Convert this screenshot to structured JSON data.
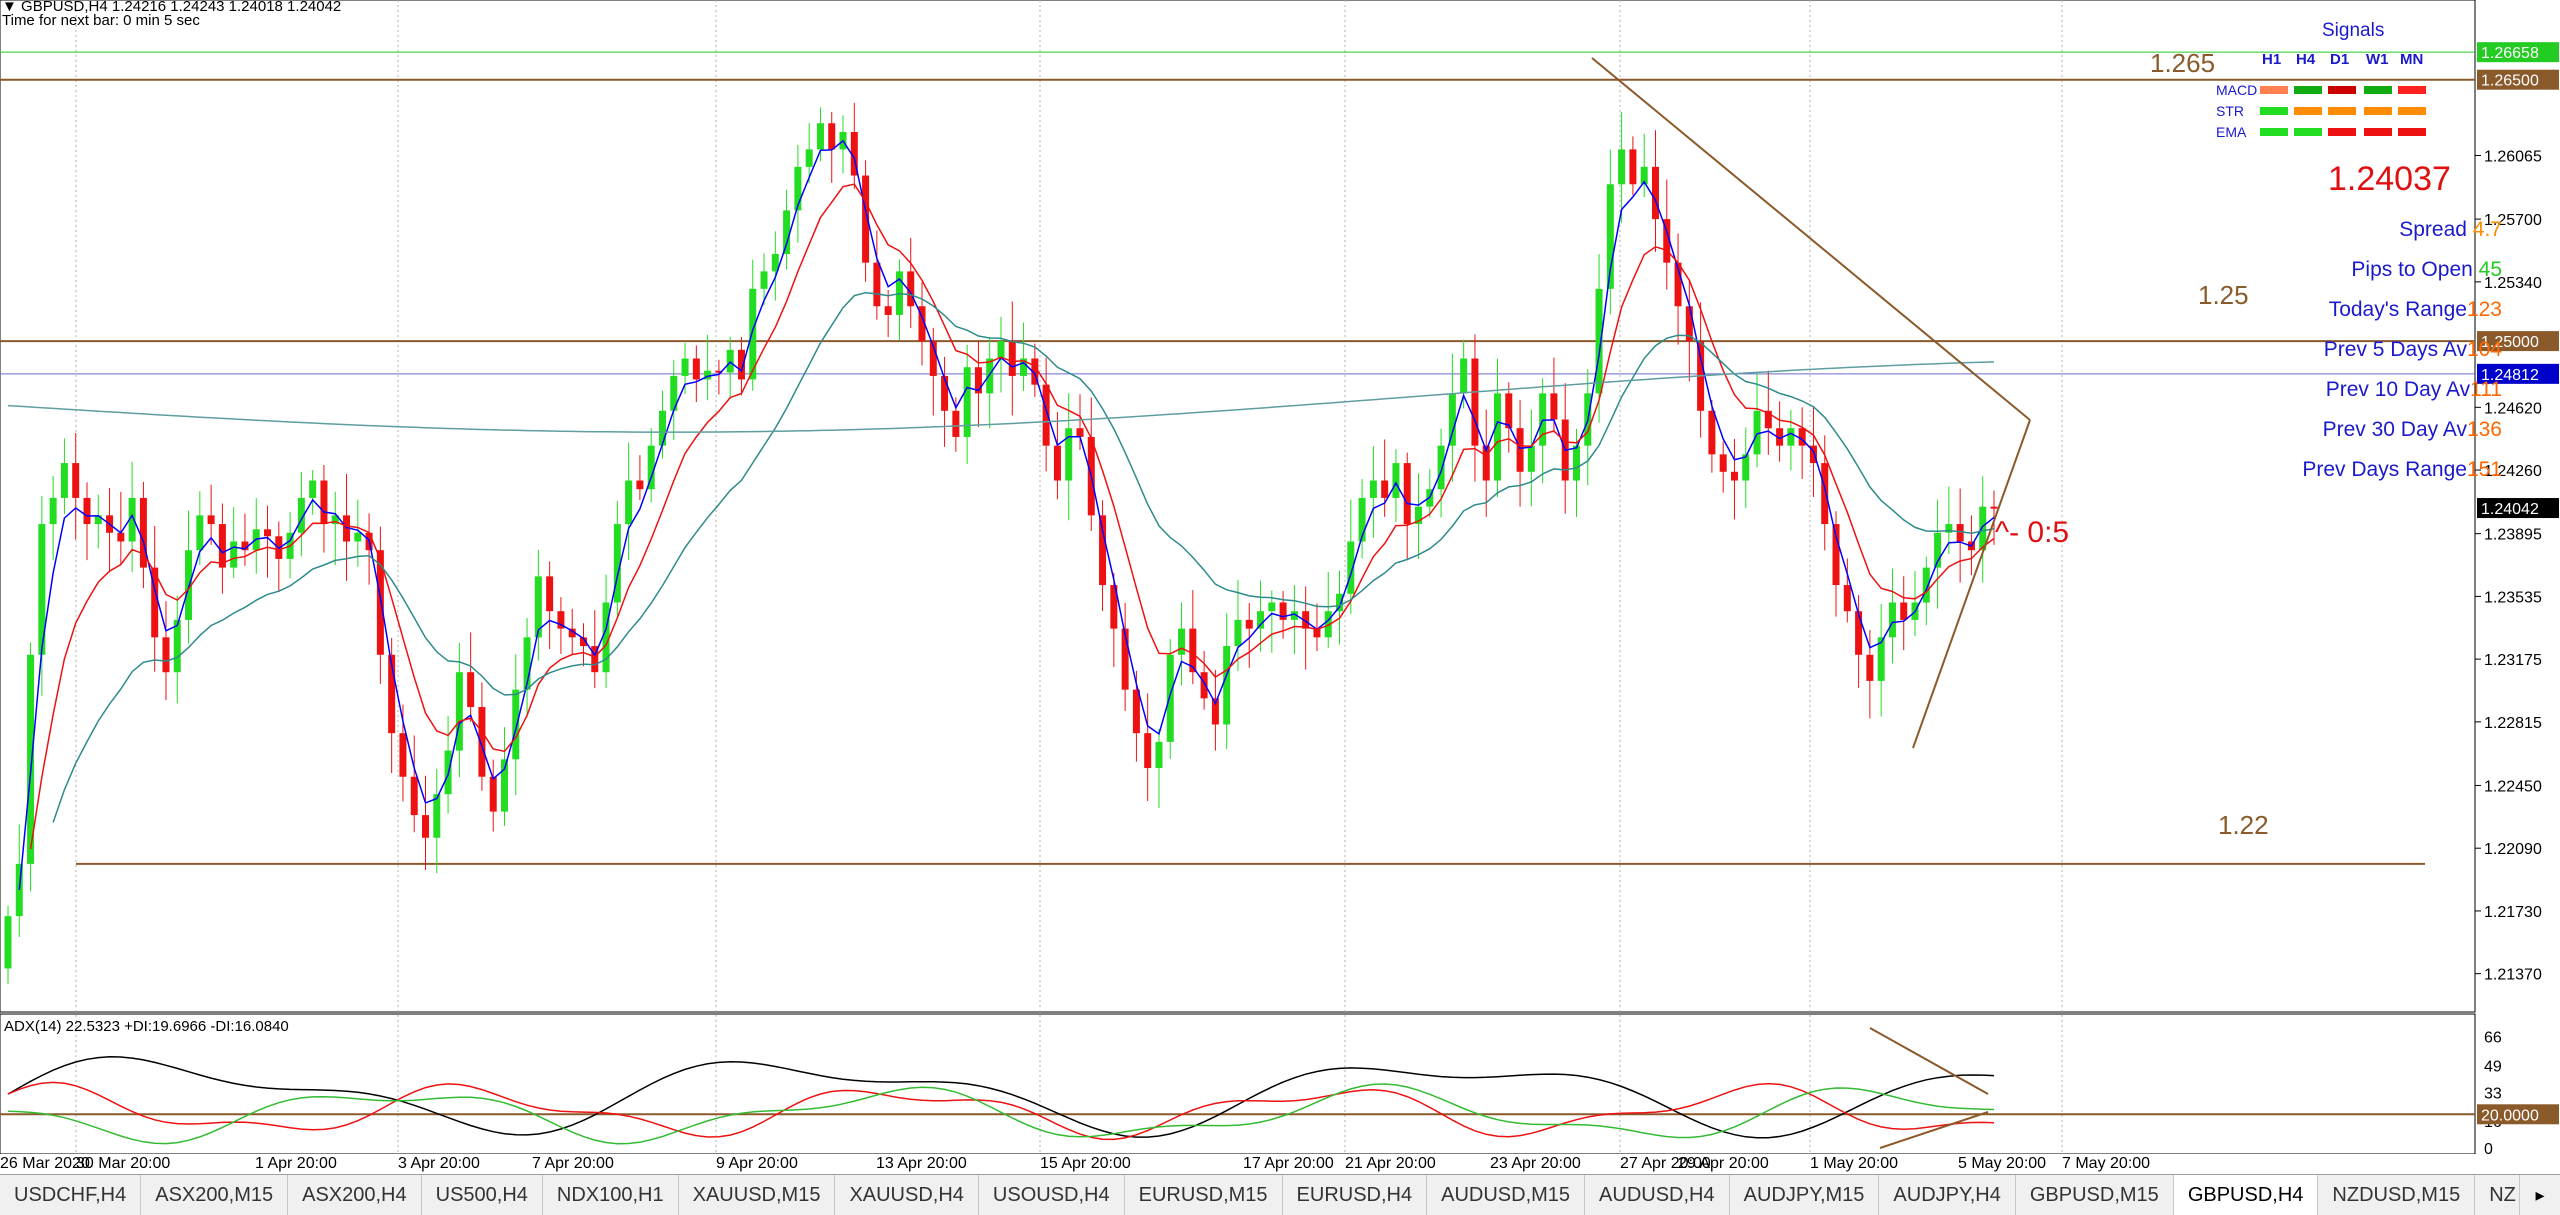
{
  "header": {
    "symbol_line": "GBPUSD,H4  1.24216 1.24243 1.24018 1.24042",
    "timer_line": "Time for next bar: 0 min 5 sec",
    "arrow_glyph": "▼"
  },
  "price_axis": {
    "ticks": [
      "1.26065",
      "1.25700",
      "1.25340",
      "1.24620",
      "1.24260",
      "1.23895",
      "1.23535",
      "1.23175",
      "1.22815",
      "1.22450",
      "1.22090",
      "1.21730",
      "1.21370"
    ],
    "top_partial_tick": "1.26",
    "tags": [
      {
        "label": "1.26658",
        "bg": "#22cc22",
        "fg": "#ffffff"
      },
      {
        "label": "1.26500",
        "bg": "#8b5a2b",
        "fg": "#ffffff"
      },
      {
        "label": "1.25000",
        "bg": "#8b5a2b",
        "fg": "#ffffff"
      },
      {
        "label": "1.24812",
        "bg": "#0000cc",
        "fg": "#ffffff"
      },
      {
        "label": "1.24042",
        "bg": "#000000",
        "fg": "#ffffff"
      }
    ]
  },
  "level_labels": [
    {
      "label": "1.265",
      "color": "#8b5a2b"
    },
    {
      "label": "1.25",
      "color": "#8b5a2b"
    },
    {
      "label": "1.22",
      "color": "#8b5a2b"
    }
  ],
  "annotation": {
    "text": "^- 0:5",
    "color": "#e01010"
  },
  "signals": {
    "title": "Signals",
    "columns": [
      "H1",
      "H4",
      "D1",
      "W1",
      "MN"
    ],
    "rows": [
      {
        "name": "MACD",
        "colors": [
          "#ff7f50",
          "#11aa11",
          "#cc0000",
          "#11aa11",
          "#ff2020"
        ]
      },
      {
        "name": "STR",
        "colors": [
          "#22dd22",
          "#ff8c00",
          "#ff8c00",
          "#ff8c00",
          "#ff8c00"
        ]
      },
      {
        "name": "EMA",
        "colors": [
          "#22dd22",
          "#22dd22",
          "#ee1111",
          "#ee1111",
          "#ee1111"
        ]
      }
    ]
  },
  "price_display": {
    "value": "1.24037",
    "color": "#e01010"
  },
  "stats": [
    {
      "label": "Spread",
      "value": "4.7",
      "value_color": "#ff8c00"
    },
    {
      "label": "Pips to Open",
      "value": "45",
      "value_color": "#22cc22"
    },
    {
      "label": "Today's Range",
      "value": "123",
      "value_color": "#ff6600"
    },
    {
      "label": "Prev 5 Days Av",
      "value": "104",
      "value_color": "#ff6600"
    },
    {
      "label": "Prev 10 Day Av",
      "value": "111",
      "value_color": "#ff6600"
    },
    {
      "label": "Prev 30 Day Av",
      "value": "136",
      "value_color": "#ff6600"
    },
    {
      "label": "Prev Days Range",
      "value": "151",
      "value_color": "#ff6600"
    }
  ],
  "adx": {
    "label": "ADX(14) 22.5323 +DI:19.6966 -DI:16.0840",
    "ticks": [
      "66",
      "49",
      "33",
      "16",
      "0"
    ],
    "level_tag": "20.0000"
  },
  "time_axis": [
    "26 Mar 2020",
    "30 Mar 20:00",
    "1 Apr 20:00",
    "3 Apr 20:00",
    "7 Apr 20:00",
    "9 Apr 20:00",
    "13 Apr 20:00",
    "15 Apr 20:00",
    "17 Apr 20:00",
    "21 Apr 20:00",
    "23 Apr 20:00",
    "27 Apr 20:00",
    "29 Apr 20:00",
    "1 May 20:00",
    "5 May 20:00",
    "7 May 20:00"
  ],
  "tabs": [
    "USDCHF,H4",
    "ASX200,M15",
    "ASX200,H4",
    "US500,H4",
    "NDX100,H1",
    "XAUUSD,M15",
    "XAUUSD,H4",
    "USOUSD,H4",
    "EURUSD,M15",
    "EURUSD,H4",
    "AUDUSD,M15",
    "AUDUSD,H4",
    "AUDJPY,M15",
    "AUDJPY,H4",
    "GBPUSD,M15",
    "GBPUSD,H4",
    "NZDUSD,M15",
    "NZ"
  ],
  "active_tab": "GBPUSD,H4",
  "chart_data": {
    "type": "candlestick",
    "symbol": "GBPUSD",
    "timeframe": "H4",
    "ylim": [
      1.2115,
      1.269
    ],
    "bull_color": "#22dd22",
    "bear_color": "#ee1111",
    "closes": [
      1.217,
      1.22,
      1.232,
      1.2395,
      1.241,
      1.243,
      1.241,
      1.2395,
      1.24,
      1.239,
      1.2385,
      1.241,
      1.237,
      1.233,
      1.231,
      1.234,
      1.238,
      1.24,
      1.2395,
      1.237,
      1.2385,
      1.238,
      1.2392,
      1.2388,
      1.2375,
      1.239,
      1.241,
      1.242,
      1.2395,
      1.24,
      1.2385,
      1.239,
      1.238,
      1.232,
      1.2275,
      1.225,
      1.2228,
      1.2215,
      1.224,
      1.2265,
      1.231,
      1.229,
      1.225,
      1.223,
      1.226,
      1.23,
      1.233,
      1.2365,
      1.2345,
      1.2335,
      1.233,
      1.2325,
      1.231,
      1.235,
      1.2395,
      1.242,
      1.2415,
      1.244,
      1.246,
      1.248,
      1.249,
      1.2478,
      1.2483,
      1.2482,
      1.2495,
      1.2478,
      1.253,
      1.254,
      1.255,
      1.2575,
      1.26,
      1.261,
      1.2625,
      1.261,
      1.262,
      1.2595,
      1.2545,
      1.252,
      1.2515,
      1.254,
      1.252,
      1.25,
      1.248,
      1.246,
      1.2445,
      1.2485,
      1.247,
      1.249,
      1.25,
      1.248,
      1.249,
      1.2475,
      1.244,
      1.242,
      1.245,
      1.2445,
      1.24,
      1.236,
      1.2335,
      1.23,
      1.2275,
      1.2255,
      1.227,
      1.232,
      1.2335,
      1.231,
      1.2295,
      1.228,
      1.2325,
      1.234,
      1.2335,
      1.2345,
      1.235,
      1.234,
      1.2345,
      1.2335,
      1.233,
      1.2345,
      1.2355,
      1.2385,
      1.241,
      1.242,
      1.241,
      1.243,
      1.2395,
      1.2405,
      1.2415,
      1.244,
      1.247,
      1.249,
      1.244,
      1.242,
      1.247,
      1.245,
      1.2425,
      1.244,
      1.247,
      1.2455,
      1.242,
      1.244,
      1.247,
      1.253,
      1.259,
      1.261,
      1.259,
      1.26,
      1.257,
      1.2545,
      1.252,
      1.25,
      1.246,
      1.2435,
      1.2425,
      1.242,
      1.2435,
      1.246,
      1.245,
      1.244,
      1.245,
      1.244,
      1.243,
      1.2395,
      1.236,
      1.2345,
      1.232,
      1.2305,
      1.233,
      1.235,
      1.234,
      1.235,
      1.237,
      1.239,
      1.2395,
      1.2385,
      1.238,
      1.2405,
      1.2404
    ],
    "ema_fast_color": "#0000ff",
    "ema_mid_color": "#ee1111",
    "ema_slow_color": "#2e8b8b",
    "ema_long_color": "#5f9ea0",
    "hlines": [
      {
        "value": 1.26658,
        "color": "#22cc22"
      },
      {
        "value": 1.265,
        "color": "#8b5a2b"
      },
      {
        "value": 1.25,
        "color": "#8b5a2b"
      },
      {
        "value": 1.24812,
        "color": "#6a6acd"
      },
      {
        "value": 1.22,
        "color": "#8b5a2b"
      }
    ],
    "adx_ylim": [
      0,
      70
    ],
    "adx_level": 20
  }
}
